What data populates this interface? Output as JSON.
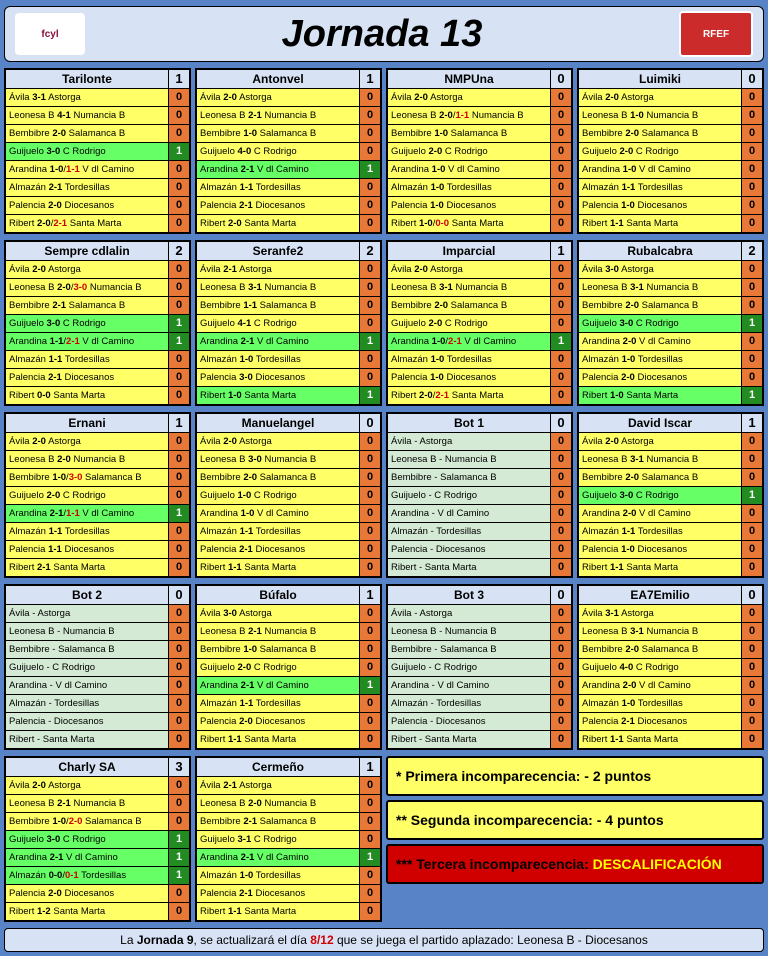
{
  "title": "Jornada 13",
  "logos": {
    "left_text": "fcyl",
    "right_text": "RFEF"
  },
  "colors": {
    "page_bg": "#5883c6",
    "header_bg": "#d7e3f4",
    "yellow": "#ffff66",
    "green_bg": "#66ff66",
    "blank_bg": "#d4ead4",
    "pts_orange": "#e87838",
    "pts_green": "#228b22",
    "red_text": "#d00000",
    "note_red": "#d00000"
  },
  "fixtures": [
    [
      "Ávila",
      "Astorga"
    ],
    [
      "Leonesa B",
      "Numancia B"
    ],
    [
      "Bembibre",
      "Salamanca B"
    ],
    [
      "Guijuelo",
      "C Rodrigo"
    ],
    [
      "Arandina",
      "V dl Camino"
    ],
    [
      "Almazán",
      "Tordesillas"
    ],
    [
      "Palencia",
      "Diocesanos"
    ],
    [
      "Ribert",
      "Santa Marta"
    ]
  ],
  "groups": [
    [
      {
        "name": "Tarilonte",
        "total": 1,
        "rows": [
          {
            "s": "3-1",
            "p": 0
          },
          {
            "s": "4-1",
            "p": 0
          },
          {
            "s": "2-0",
            "p": 0
          },
          {
            "s": "3-0",
            "p": 1,
            "hi": true
          },
          {
            "s": "1-0",
            "s2": "1-1",
            "p": 0
          },
          {
            "s": "2-1",
            "p": 0
          },
          {
            "s": "2-0",
            "p": 0
          },
          {
            "s": "2-0",
            "s2": "2-1",
            "p": 0
          }
        ]
      },
      {
        "name": "Antonvel",
        "total": 1,
        "rows": [
          {
            "s": "2-0",
            "p": 0
          },
          {
            "s": "2-1",
            "p": 0
          },
          {
            "s": "1-0",
            "p": 0
          },
          {
            "s": "4-0",
            "p": 0
          },
          {
            "s": "2-1",
            "p": 1,
            "hi": true
          },
          {
            "s": "1-1",
            "p": 0
          },
          {
            "s": "2-1",
            "p": 0
          },
          {
            "s": "2-0",
            "p": 0
          }
        ]
      },
      {
        "name": "NMPUna",
        "total": 0,
        "rows": [
          {
            "s": "2-0",
            "p": 0
          },
          {
            "s": "2-0",
            "s2": "1-1",
            "p": 0
          },
          {
            "s": "1-0",
            "p": 0
          },
          {
            "s": "2-0",
            "p": 0
          },
          {
            "s": "1-0",
            "p": 0
          },
          {
            "s": "1-0",
            "p": 0
          },
          {
            "s": "1-0",
            "p": 0
          },
          {
            "s": "1-0",
            "s2": "0-0",
            "p": 0
          }
        ]
      },
      {
        "name": "Luimiki",
        "total": 0,
        "rows": [
          {
            "s": "2-0",
            "p": 0
          },
          {
            "s": "1-0",
            "p": 0
          },
          {
            "s": "2-0",
            "p": 0
          },
          {
            "s": "2-0",
            "p": 0
          },
          {
            "s": "1-0",
            "p": 0
          },
          {
            "s": "1-1",
            "p": 0
          },
          {
            "s": "1-0",
            "p": 0
          },
          {
            "s": "1-1",
            "p": 0
          }
        ]
      }
    ],
    [
      {
        "name": "Sempre cdlalin",
        "total": 2,
        "rows": [
          {
            "s": "2-0",
            "p": 0
          },
          {
            "s": "2-0",
            "s2": "3-0",
            "p": 0
          },
          {
            "s": "2-1",
            "p": 0
          },
          {
            "s": "3-0",
            "p": 1,
            "hi": true
          },
          {
            "s": "1-1",
            "s2": "2-1",
            "p": 1,
            "hi": true
          },
          {
            "s": "1-1",
            "p": 0
          },
          {
            "s": "2-1",
            "p": 0
          },
          {
            "s": "0-0",
            "p": 0
          }
        ]
      },
      {
        "name": "Seranfe2",
        "total": 2,
        "rows": [
          {
            "s": "2-1",
            "p": 0
          },
          {
            "s": "3-1",
            "p": 0
          },
          {
            "s": "1-1",
            "p": 0
          },
          {
            "s": "4-1",
            "p": 0
          },
          {
            "s": "2-1",
            "p": 1,
            "hi": true
          },
          {
            "s": "1-0",
            "p": 0
          },
          {
            "s": "3-0",
            "p": 0
          },
          {
            "s": "1-0",
            "p": 1,
            "hi": true
          }
        ]
      },
      {
        "name": "Imparcial",
        "total": 1,
        "rows": [
          {
            "s": "2-0",
            "p": 0
          },
          {
            "s": "3-1",
            "p": 0
          },
          {
            "s": "2-0",
            "p": 0
          },
          {
            "s": "2-0",
            "p": 0
          },
          {
            "s": "1-0",
            "s2": "2-1",
            "p": 1,
            "hi": true
          },
          {
            "s": "1-0",
            "p": 0
          },
          {
            "s": "1-0",
            "p": 0
          },
          {
            "s": "2-0",
            "s2": "2-1",
            "p": 0
          }
        ]
      },
      {
        "name": "Rubalcabra",
        "total": 2,
        "rows": [
          {
            "s": "3-0",
            "p": 0
          },
          {
            "s": "3-1",
            "p": 0
          },
          {
            "s": "2-0",
            "p": 0
          },
          {
            "s": "3-0",
            "p": 1,
            "hi": true
          },
          {
            "s": "2-0",
            "p": 0
          },
          {
            "s": "1-0",
            "p": 0
          },
          {
            "s": "2-0",
            "p": 0
          },
          {
            "s": "1-0",
            "p": 1,
            "hi": true
          }
        ]
      }
    ],
    [
      {
        "name": "Ernani",
        "total": 1,
        "rows": [
          {
            "s": "2-0",
            "p": 0
          },
          {
            "s": "2-0",
            "p": 0
          },
          {
            "s": "1-0",
            "s2": "3-0",
            "p": 0
          },
          {
            "s": "2-0",
            "p": 0
          },
          {
            "s": "2-1",
            "s2": "1-1",
            "p": 1,
            "hi": true
          },
          {
            "s": "1-1",
            "p": 0
          },
          {
            "s": "1-1",
            "p": 0
          },
          {
            "s": "2-1",
            "p": 0
          }
        ]
      },
      {
        "name": "Manuelangel",
        "total": 0,
        "rows": [
          {
            "s": "2-0",
            "p": 0
          },
          {
            "s": "3-0",
            "p": 0
          },
          {
            "s": "2-0",
            "p": 0
          },
          {
            "s": "1-0",
            "p": 0
          },
          {
            "s": "1-0",
            "p": 0
          },
          {
            "s": "1-1",
            "p": 0
          },
          {
            "s": "2-1",
            "p": 0
          },
          {
            "s": "1-1",
            "p": 0
          }
        ]
      },
      {
        "name": "Bot 1",
        "total": 0,
        "blank": true,
        "rows": [
          {
            "p": 0
          },
          {
            "p": 0
          },
          {
            "p": 0
          },
          {
            "p": 0
          },
          {
            "p": 0
          },
          {
            "p": 0
          },
          {
            "p": 0
          },
          {
            "p": 0
          }
        ]
      },
      {
        "name": "David Iscar",
        "total": 1,
        "rows": [
          {
            "s": "2-0",
            "p": 0
          },
          {
            "s": "3-1",
            "p": 0
          },
          {
            "s": "2-0",
            "p": 0
          },
          {
            "s": "3-0",
            "p": 1,
            "hi": true
          },
          {
            "s": "2-0",
            "p": 0
          },
          {
            "s": "1-1",
            "p": 0
          },
          {
            "s": "1-0",
            "p": 0
          },
          {
            "s": "1-1",
            "p": 0
          }
        ]
      }
    ],
    [
      {
        "name": "Bot 2",
        "total": 0,
        "blank": true,
        "rows": [
          {
            "p": 0
          },
          {
            "p": 0
          },
          {
            "p": 0
          },
          {
            "p": 0
          },
          {
            "p": 0
          },
          {
            "p": 0
          },
          {
            "p": 0
          },
          {
            "p": 0
          }
        ]
      },
      {
        "name": "Búfalo",
        "total": 1,
        "rows": [
          {
            "s": "3-0",
            "p": 0
          },
          {
            "s": "2-1",
            "p": 0
          },
          {
            "s": "1-0",
            "p": 0
          },
          {
            "s": "2-0",
            "p": 0
          },
          {
            "s": "2-1",
            "p": 1,
            "hi": true
          },
          {
            "s": "1-1",
            "p": 0
          },
          {
            "s": "2-0",
            "p": 0
          },
          {
            "s": "1-1",
            "p": 0
          }
        ]
      },
      {
        "name": "Bot 3",
        "total": 0,
        "blank": true,
        "rows": [
          {
            "p": 0
          },
          {
            "p": 0
          },
          {
            "p": 0
          },
          {
            "p": 0
          },
          {
            "p": 0
          },
          {
            "p": 0
          },
          {
            "p": 0
          },
          {
            "p": 0
          }
        ]
      },
      {
        "name": "EA7Emilio",
        "total": 0,
        "rows": [
          {
            "s": "3-1",
            "p": 0
          },
          {
            "s": "3-1",
            "p": 0
          },
          {
            "s": "2-0",
            "p": 0
          },
          {
            "s": "4-0",
            "p": 0
          },
          {
            "s": "2-0",
            "p": 0
          },
          {
            "s": "1-0",
            "p": 0
          },
          {
            "s": "2-1",
            "p": 0
          },
          {
            "s": "1-1",
            "p": 0
          }
        ]
      }
    ],
    [
      {
        "name": "Charly SA",
        "total": 3,
        "rows": [
          {
            "s": "2-0",
            "p": 0
          },
          {
            "s": "2-1",
            "p": 0
          },
          {
            "s": "1-0",
            "s2": "2-0",
            "p": 0
          },
          {
            "s": "3-0",
            "p": 1,
            "hi": true
          },
          {
            "s": "2-1",
            "p": 1,
            "hi": true
          },
          {
            "s": "0-0",
            "s2": "0-1",
            "p": 1,
            "hi": true
          },
          {
            "s": "2-0",
            "p": 0
          },
          {
            "s": "1-2",
            "p": 0
          }
        ]
      },
      {
        "name": "Cermeño",
        "total": 1,
        "rows": [
          {
            "s": "2-1",
            "p": 0
          },
          {
            "s": "2-0",
            "p": 0
          },
          {
            "s": "2-1",
            "p": 0
          },
          {
            "s": "3-1",
            "p": 0
          },
          {
            "s": "2-1",
            "p": 1,
            "hi": true
          },
          {
            "s": "1-0",
            "p": 0
          },
          {
            "s": "2-1",
            "p": 0
          },
          {
            "s": "1-1",
            "p": 0
          }
        ]
      }
    ]
  ],
  "notes": [
    {
      "cls": "y",
      "text": "* Primera incomparecencia: - 2 puntos"
    },
    {
      "cls": "y",
      "text": "** Segunda incomparecencia: - 4 puntos"
    },
    {
      "cls": "r",
      "lead": "*** Tercera incomparecencia: ",
      "dq": "DESCALIFICACIÓN"
    }
  ],
  "footer": {
    "a": "La ",
    "b": "Jornada 9",
    "c": ", se actualizará el día ",
    "d": "8/12",
    "e": " que se juega el partido aplazado: Leonesa B - Diocesanos"
  }
}
